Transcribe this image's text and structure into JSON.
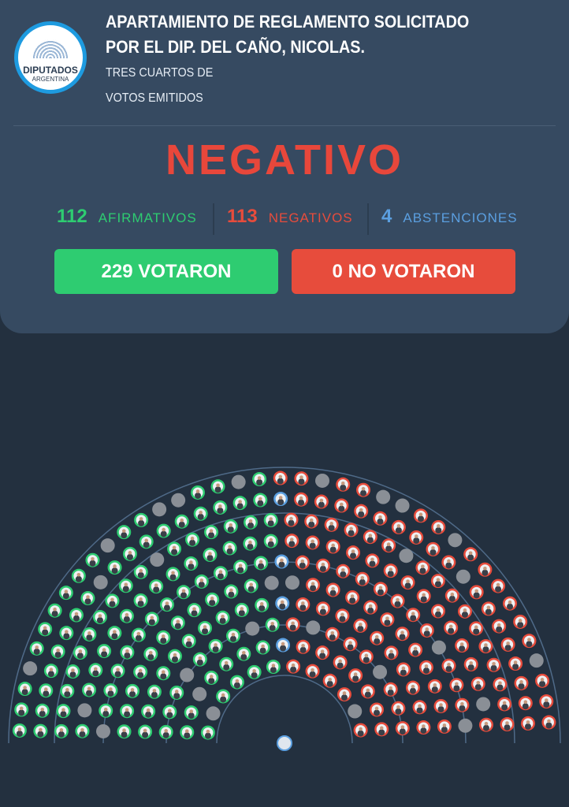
{
  "logo": {
    "line1": "DIPUTADOS",
    "line2": "ARGENTINA"
  },
  "header": {
    "title_line1": "APARTAMIENTO DE REGLAMENTO SOLICITADO",
    "title_line2": "POR EL DIP. DEL CAÑO, NICOLAS.",
    "sub_line1": "TRES CUARTOS DE",
    "sub_line2": "VOTOS EMITIDOS"
  },
  "result": "NEGATIVO",
  "counts": {
    "afirmativos": {
      "value": "112",
      "label": "AFIRMATIVOS"
    },
    "negativos": {
      "value": "113",
      "label": "NEGATIVOS"
    },
    "abstenciones": {
      "value": "4",
      "label": "ABSTENCIONES"
    }
  },
  "buttons": {
    "votaron": "229 VOTARON",
    "no_votaron": "0 NO VOTARON"
  },
  "colors": {
    "afirmativo": "#2ecc71",
    "negativo": "#e74c3c",
    "abstencion": "#5b9fe0",
    "ausente": "#8a8f96",
    "card": "#364a61",
    "background": "#23303f"
  },
  "hemicycle": {
    "afirmativo": 112,
    "negativo": 113,
    "abstencion": 4,
    "ausente": 28
  }
}
